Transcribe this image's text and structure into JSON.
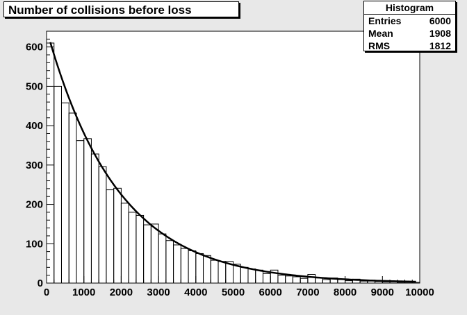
{
  "title": "Number of collisions before loss",
  "stats": {
    "header": "Histogram",
    "rows": [
      {
        "label": "Entries",
        "value": "6000"
      },
      {
        "label": "Mean",
        "value": "1908"
      },
      {
        "label": "RMS",
        "value": "1812"
      }
    ]
  },
  "colors": {
    "background": "#e8e8e8",
    "plot_area": "#ffffff",
    "line": "#000000"
  },
  "chart_data": {
    "type": "bar",
    "histogram": true,
    "xlim": [
      0,
      10000
    ],
    "ylim": [
      0,
      640
    ],
    "xticks": [
      0,
      1000,
      2000,
      3000,
      4000,
      5000,
      6000,
      7000,
      8000,
      9000,
      10000
    ],
    "yticks": [
      0,
      100,
      200,
      300,
      400,
      500,
      600
    ],
    "grid": false,
    "bin_width": 200,
    "bins": [
      {
        "x": 0,
        "y": 610
      },
      {
        "x": 200,
        "y": 500
      },
      {
        "x": 400,
        "y": 458
      },
      {
        "x": 600,
        "y": 432
      },
      {
        "x": 800,
        "y": 362
      },
      {
        "x": 1000,
        "y": 367
      },
      {
        "x": 1200,
        "y": 328
      },
      {
        "x": 1400,
        "y": 296
      },
      {
        "x": 1600,
        "y": 237
      },
      {
        "x": 1800,
        "y": 241
      },
      {
        "x": 2000,
        "y": 203
      },
      {
        "x": 2200,
        "y": 180
      },
      {
        "x": 2400,
        "y": 172
      },
      {
        "x": 2600,
        "y": 148
      },
      {
        "x": 2800,
        "y": 150
      },
      {
        "x": 3000,
        "y": 125
      },
      {
        "x": 3200,
        "y": 108
      },
      {
        "x": 3400,
        "y": 97
      },
      {
        "x": 3600,
        "y": 88
      },
      {
        "x": 3800,
        "y": 82
      },
      {
        "x": 4000,
        "y": 75
      },
      {
        "x": 4200,
        "y": 70
      },
      {
        "x": 4400,
        "y": 58
      },
      {
        "x": 4600,
        "y": 55
      },
      {
        "x": 4800,
        "y": 55
      },
      {
        "x": 5000,
        "y": 48
      },
      {
        "x": 5200,
        "y": 40
      },
      {
        "x": 5400,
        "y": 36
      },
      {
        "x": 5600,
        "y": 33
      },
      {
        "x": 5800,
        "y": 24
      },
      {
        "x": 6000,
        "y": 33
      },
      {
        "x": 6200,
        "y": 20
      },
      {
        "x": 6400,
        "y": 18
      },
      {
        "x": 6600,
        "y": 16
      },
      {
        "x": 6800,
        "y": 12
      },
      {
        "x": 7000,
        "y": 22
      },
      {
        "x": 7200,
        "y": 13
      },
      {
        "x": 7400,
        "y": 9
      },
      {
        "x": 7600,
        "y": 13
      },
      {
        "x": 7800,
        "y": 9
      },
      {
        "x": 8000,
        "y": 6
      },
      {
        "x": 8200,
        "y": 10
      },
      {
        "x": 8400,
        "y": 5
      },
      {
        "x": 8600,
        "y": 5
      },
      {
        "x": 8800,
        "y": 4
      },
      {
        "x": 9000,
        "y": 3
      },
      {
        "x": 9200,
        "y": 3
      },
      {
        "x": 9400,
        "y": 2
      },
      {
        "x": 9600,
        "y": 2
      },
      {
        "x": 9800,
        "y": 2
      }
    ],
    "fit": {
      "type": "exponential",
      "amplitude": 612,
      "decay_length": 1900
    }
  }
}
